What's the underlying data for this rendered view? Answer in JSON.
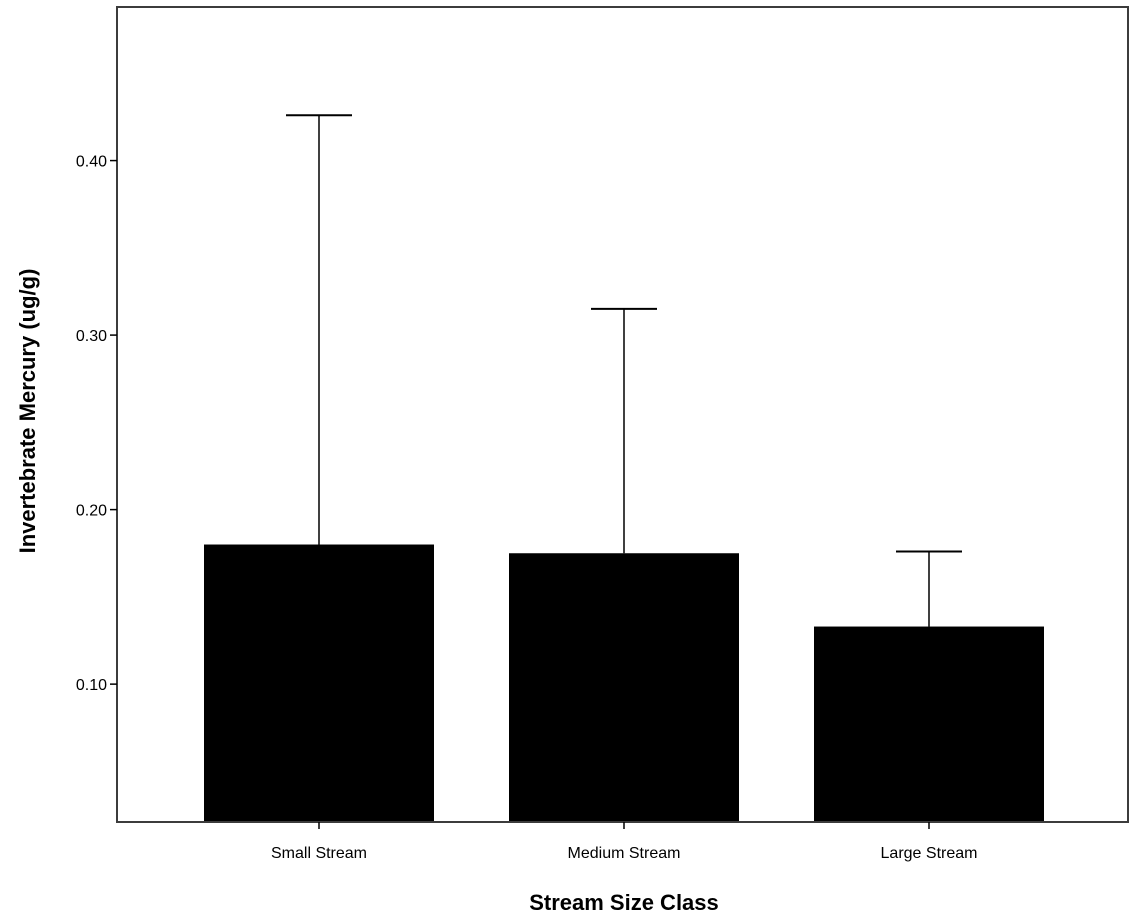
{
  "chart_data": {
    "type": "bar",
    "title": "",
    "xlabel": "Stream Size Class",
    "ylabel": "Invertebrate Mercury (ug/g)",
    "categories": [
      "Small Stream",
      "Medium Stream",
      "Large Stream"
    ],
    "values": [
      0.18,
      0.175,
      0.133
    ],
    "error_upper": [
      0.426,
      0.315,
      0.176
    ],
    "ylim": [
      0.021,
      0.488
    ],
    "yticks": [
      0.1,
      0.2,
      0.3,
      0.4
    ],
    "ytick_labels": [
      "0.10",
      "0.20",
      "0.30",
      "0.40"
    ],
    "grid": false,
    "legend": "none",
    "colors": {
      "bar": "#000000",
      "error_bar": "#000000",
      "frame": "#3c3c3c",
      "background": "#ffffff"
    }
  }
}
